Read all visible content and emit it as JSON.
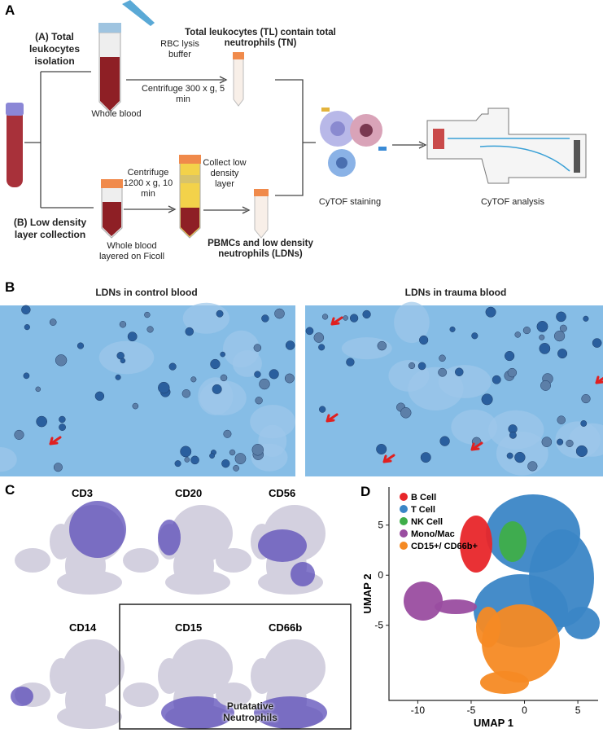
{
  "panel_a": {
    "label": "A",
    "route_a": "(A) Total leukocytes isolation",
    "rbc": "RBC lysis buffer",
    "whole_blood": "Whole blood",
    "centrifuge_a": "Centrifuge 300 x g, 5 min",
    "tl": "Total leukocytes (TL) contain total neutrophils (TN)",
    "route_b": "(B) Low density layer collection",
    "centrifuge_b": "Centrifuge 1200 x g, 10 min",
    "collect": "Collect low density layer",
    "whole_blood_ficoll": "Whole blood layered on Ficoll",
    "pbmc": "PBMCs and low density neutrophils (LDNs)",
    "cytof_staining": "CyTOF staining",
    "cytof_analysis": "CyTOF analysis"
  },
  "panel_b": {
    "label": "B",
    "images": [
      "LDNs in control blood",
      "LDNs in trauma blood"
    ]
  },
  "panel_c": {
    "label": "C",
    "markers": [
      "CD3",
      "CD20",
      "CD56",
      "CD14",
      "CD15",
      "CD66b"
    ],
    "box_label": "Putatative Neutrophils"
  },
  "panel_d": {
    "label": "D",
    "type": "scatter",
    "xlabel": "UMAP 1",
    "ylabel": "UMAP 2",
    "xlim": [
      -12.7,
      6.9
    ],
    "ylim": [
      -12.5,
      8.8
    ],
    "xticks": [
      -10,
      -5,
      0,
      5
    ],
    "yticks": [
      -5,
      0,
      5
    ],
    "series": [
      {
        "name": "B Cell",
        "color": "#e8262a"
      },
      {
        "name": "T Cell",
        "color": "#3b86c6"
      },
      {
        "name": "NK Cell",
        "color": "#3fae49"
      },
      {
        "name": "Mono/Mac",
        "color": "#9a4da0"
      },
      {
        "name": "CD15+/ CD66b+",
        "color": "#f58a24"
      }
    ]
  }
}
